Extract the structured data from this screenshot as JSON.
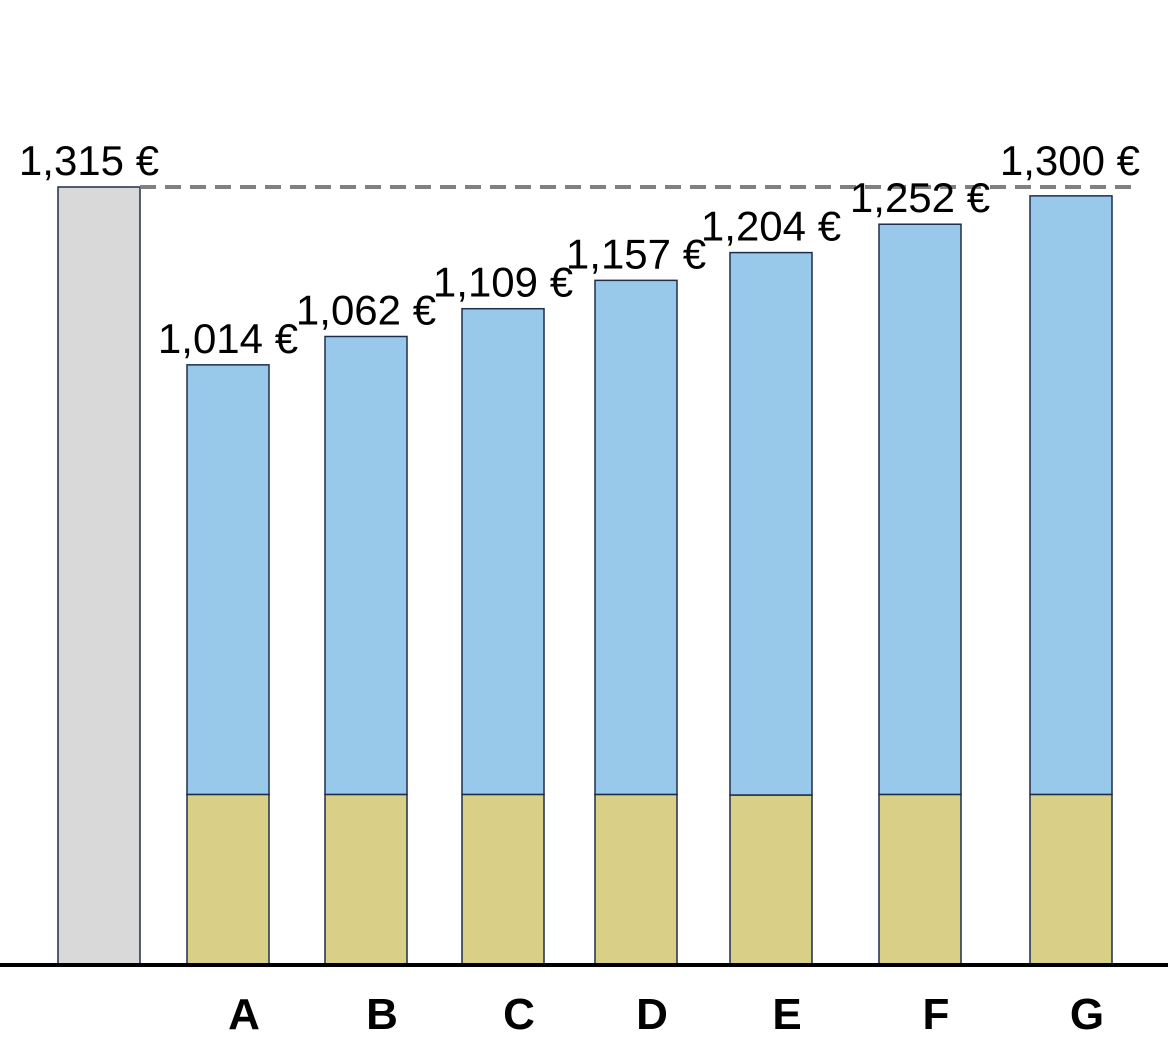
{
  "chart_data": {
    "type": "bar",
    "stacked": true,
    "categories": [
      "",
      "A",
      "B",
      "C",
      "D",
      "E",
      "F",
      "G"
    ],
    "series": [
      {
        "values": [
          0,
          287,
          287,
          287,
          287,
          286,
          287,
          287
        ],
        "color": "#dacf86"
      },
      {
        "values": [
          1315,
          727,
          775,
          822,
          870,
          918,
          965,
          1013
        ],
        "color": "#99c9ea"
      }
    ],
    "bar_labels": [
      "1,315 €",
      "1,014 €",
      "1,062 €",
      "1,109 €",
      "1,157 €",
      "1,204 €",
      "1,252 €",
      ""
    ],
    "reference_line": {
      "value": 1315,
      "style": "dashed",
      "color": "#808080",
      "label": "1,300 €"
    },
    "first_bar_color": "#d9d9d9",
    "ylim": [
      0,
      1315
    ],
    "grid": false,
    "title": "",
    "xlabel": "",
    "ylabel": ""
  }
}
